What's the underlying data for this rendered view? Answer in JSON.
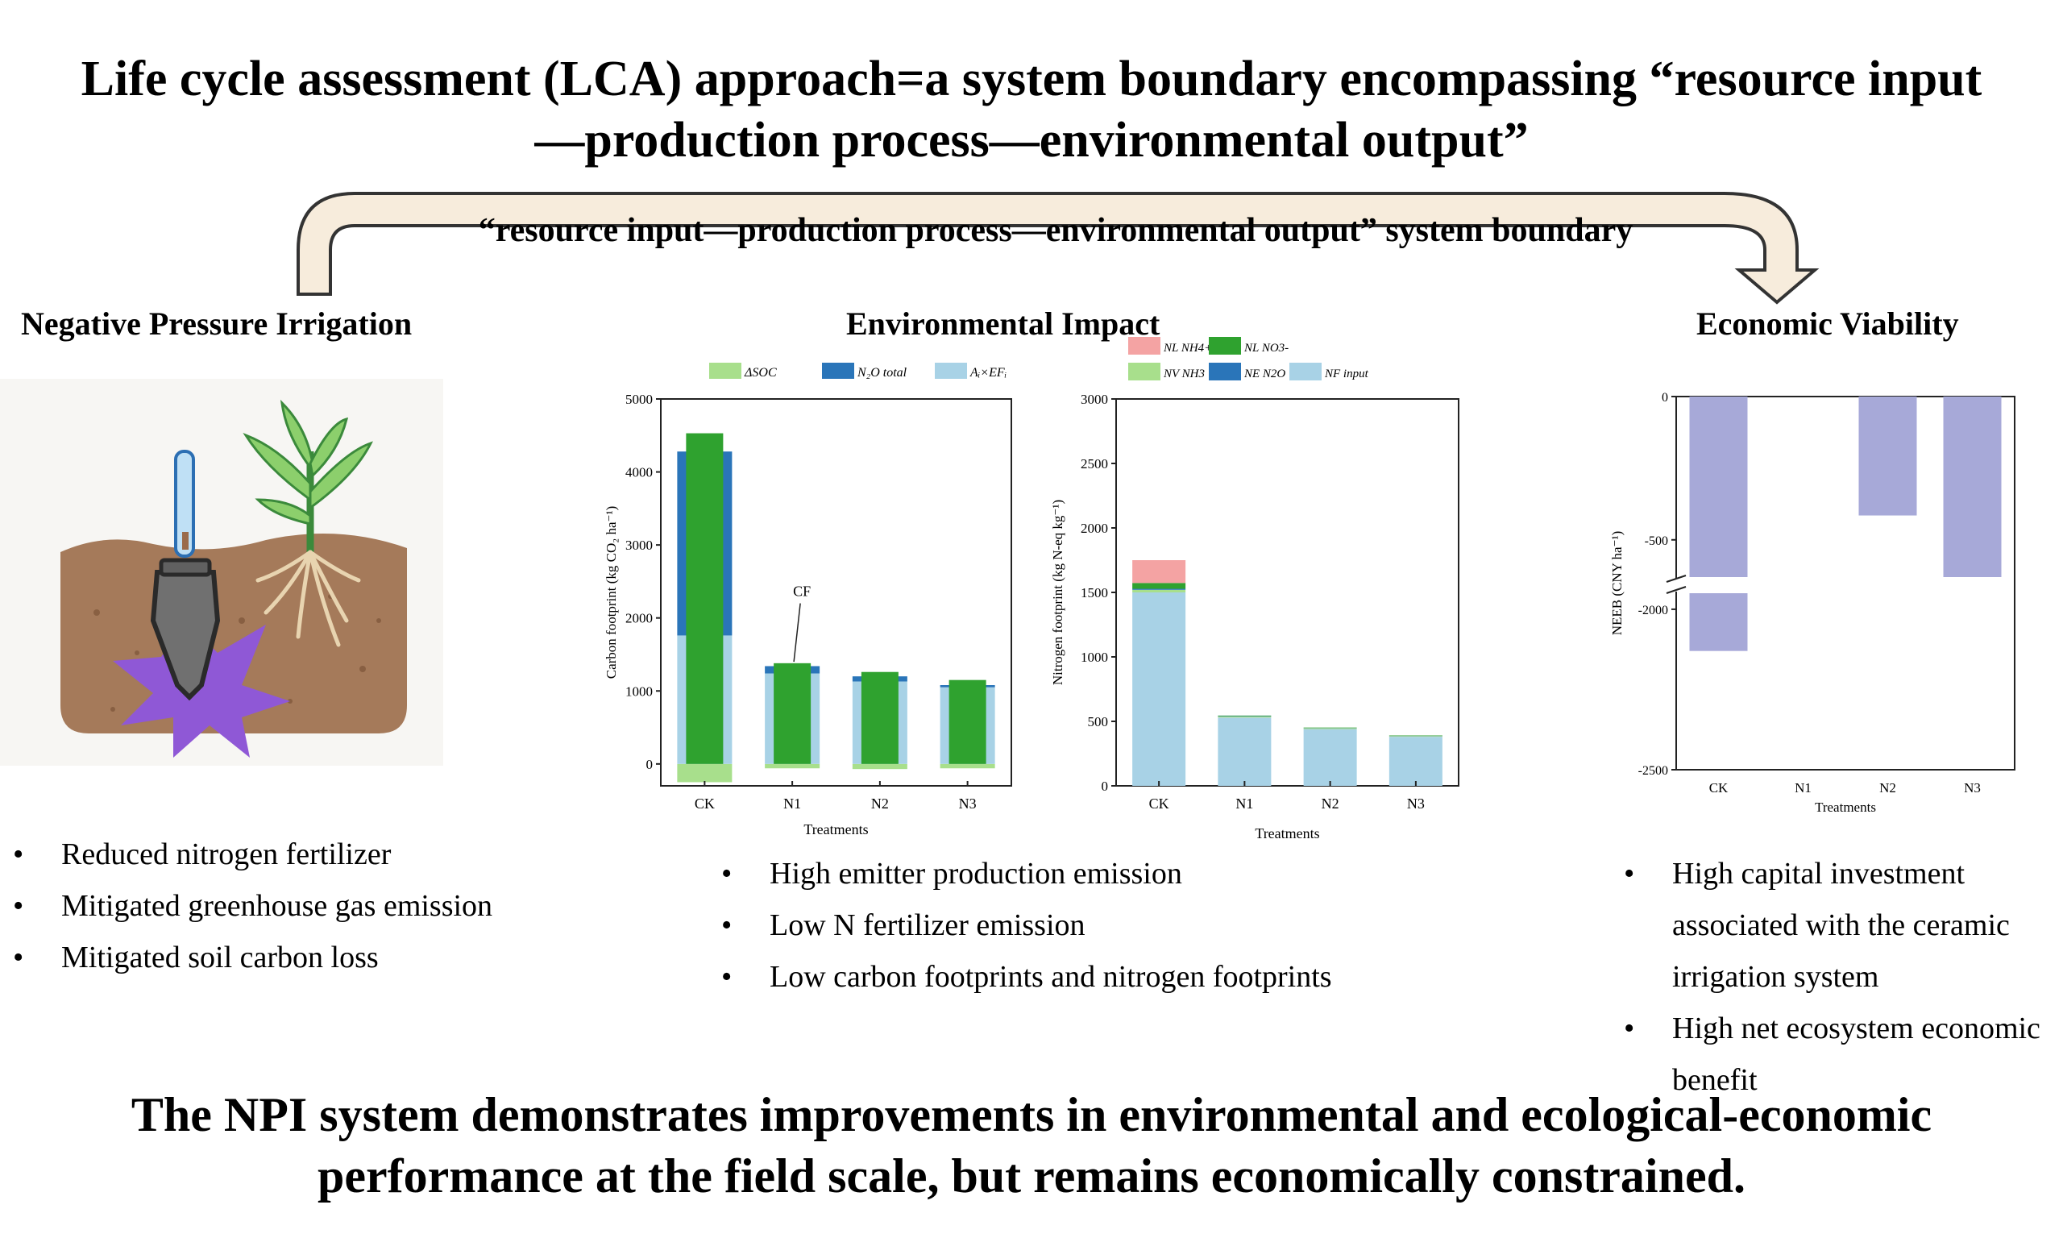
{
  "title": "Life cycle assessment (LCA) approach=a system boundary encompassing “resource input—production process—environmental output”",
  "boundary_label": "“resource input—production process—environmental output” system boundary",
  "sections": {
    "left": {
      "heading": "Negative Pressure Irrigation",
      "bullets": [
        "Reduced nitrogen fertilizer",
        "Mitigated greenhouse gas emission",
        "Mitigated soil carbon loss"
      ]
    },
    "middle": {
      "heading": "Environmental Impact",
      "bullets": [
        "High emitter production emission",
        "Low N fertilizer emission",
        "Low carbon footprints and nitrogen footprints"
      ]
    },
    "right": {
      "heading": "Economic Viability",
      "bullets": [
        "High capital investment associated with the ceramic irrigation system",
        "High net ecosystem economic benefit"
      ]
    }
  },
  "conclusion": "The NPI system demonstrates improvements in environmental and ecological-economic performance at the field scale, but remains economically constrained.",
  "colors": {
    "soc": "#a8df8c",
    "n2o": "#2a75b9",
    "ai_ef": "#a8d2e6",
    "cf": "#2fa22f",
    "nl_nh4": "#f4a3a3",
    "nl_no3": "#2fa22f",
    "nv_nh3": "#a8df8c",
    "ne_n2o": "#2a75b9",
    "nf_input": "#a8d2e6",
    "neeb": "#a7a9d8",
    "arrow_fill": "#f7ecdc",
    "soil": "#a57a5a",
    "tentacle": "#8f58d6"
  },
  "icons": [
    "ceramic-emitter-icon",
    "maize-plant-icon",
    "soil-profile-icon",
    "purple-water-diffusion-icon"
  ],
  "chart_data": [
    {
      "type": "bar",
      "ylabel": "Carbon footprint (kg CO₂ ha⁻¹)",
      "xlabel": "Treatments",
      "categories": [
        "CK",
        "N1",
        "N2",
        "N3"
      ],
      "ylim": [
        -300,
        5000
      ],
      "yticks": [
        0,
        1000,
        2000,
        3000,
        4000,
        5000
      ],
      "legend": [
        "ΔSOC",
        "N₂O total",
        "Aᵢ×EFᵢ"
      ],
      "annotation": "CF",
      "series": [
        {
          "name": "ΔSOC",
          "values": [
            -250,
            -60,
            -70,
            -60
          ]
        },
        {
          "name": "Aᵢ×EFᵢ",
          "values": [
            1760,
            1240,
            1130,
            1050
          ]
        },
        {
          "name": "N₂O total",
          "values": [
            2520,
            100,
            70,
            30
          ]
        },
        {
          "name": "CF",
          "values": [
            4530,
            1380,
            1260,
            1150
          ]
        }
      ]
    },
    {
      "type": "bar",
      "ylabel": "Nitrogen footprint (kg N-eq kg⁻¹)",
      "xlabel": "Treatments",
      "categories": [
        "CK",
        "N1",
        "N2",
        "N3"
      ],
      "ylim": [
        0,
        3000
      ],
      "yticks": [
        0,
        500,
        1000,
        1500,
        2000,
        2500,
        3000
      ],
      "legend": [
        "NL NH4+",
        "NL NO3-",
        "NV NH3",
        "NE N2O",
        "NF input"
      ],
      "series": [
        {
          "name": "NF input",
          "values": [
            1500,
            530,
            440,
            380
          ]
        },
        {
          "name": "NV NH3",
          "values": [
            20,
            8,
            7,
            6
          ]
        },
        {
          "name": "NE N2O",
          "values": [
            8,
            3,
            2,
            2
          ]
        },
        {
          "name": "NL NO3-",
          "values": [
            45,
            4,
            3,
            3
          ]
        },
        {
          "name": "NL NH4+",
          "values": [
            177,
            0,
            0,
            0
          ]
        }
      ]
    },
    {
      "type": "bar",
      "ylabel": "NEEB (CNY ha⁻¹)",
      "xlabel": "Treatments",
      "categories": [
        "CK",
        "N1",
        "N2",
        "N3"
      ],
      "ytick_labels": [
        "0",
        "-500",
        "-2000",
        "-2500"
      ],
      "axis_break": true,
      "values": [
        -2130,
        0,
        -415,
        -630
      ]
    }
  ]
}
